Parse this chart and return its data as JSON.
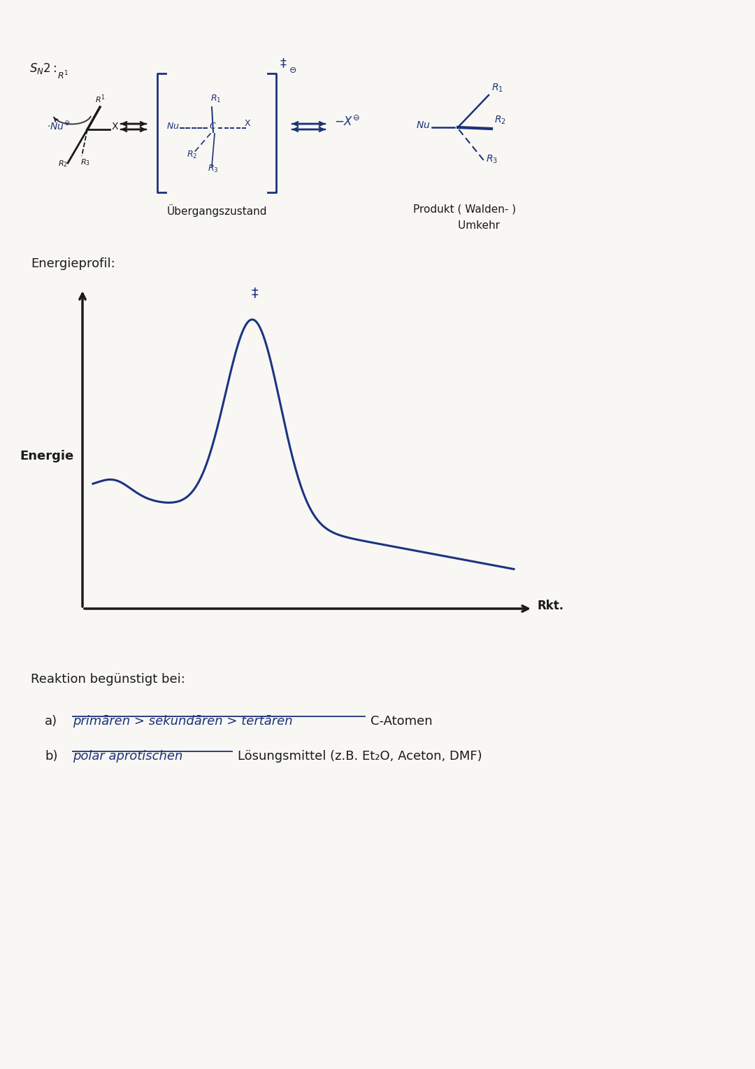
{
  "bg_color": "#f8f7f4",
  "ubergangszustand_label": "Übergangszustand",
  "energieprofil_label": "Energieprofil:",
  "energie_label": "Energie",
  "rkt_label": "Rkt.",
  "reaktion_label": "Reaktion begünstigt bei:",
  "a_handwritten": "primāren > sekundāren > tertāren",
  "a_suffix": "C-Atomen",
  "b_handwritten": "polar aprotischen",
  "b_suffix": "Lösungsmittel (z.B. Et₂O, Aceton, DMF)",
  "dark_blue": "#1c3178",
  "black": "#1a1a1a",
  "curve_color": "#1a3580",
  "produkt_line1": "Produkt ( Walden- )",
  "produkt_line2": "        Umkehr"
}
